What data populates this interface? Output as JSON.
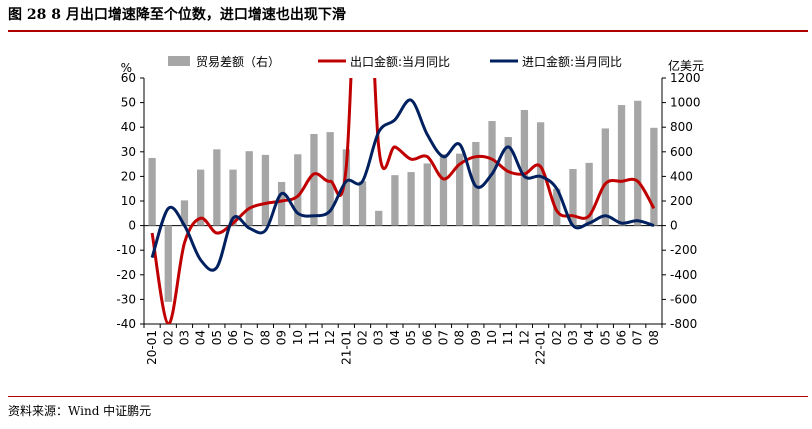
{
  "title": "图 28   8 月出口增速降至个位数，进口增速也出现下滑",
  "source": "资料来源：Wind    中证鹏元",
  "chart_data": {
    "type": "bar+line",
    "categories": [
      "20-01",
      "02",
      "03",
      "04",
      "05",
      "06",
      "07",
      "08",
      "09",
      "10",
      "11",
      "12",
      "21-01",
      "02",
      "03",
      "04",
      "05",
      "06",
      "07",
      "08",
      "09",
      "10",
      "11",
      "12",
      "22-01",
      "02",
      "03",
      "04",
      "05",
      "06",
      "07",
      "08"
    ],
    "y_left": {
      "unit": "%",
      "ylim": [
        -40,
        60
      ],
      "ticks": [
        -40,
        -30,
        -20,
        -10,
        0,
        10,
        20,
        30,
        40,
        50,
        60
      ]
    },
    "y_right": {
      "unit": "亿美元",
      "ylim": [
        -800,
        1200
      ],
      "ticks": [
        -800,
        -600,
        -400,
        -200,
        0,
        200,
        400,
        600,
        800,
        1000,
        1200
      ]
    },
    "legend": [
      "贸易差额（右）",
      "出口金额:当月同比",
      "进口金额:当月同比"
    ],
    "series": [
      {
        "name": "贸易差额（右）",
        "type": "bar",
        "axis": "right",
        "color": "#a6a6a6",
        "values": [
          550,
          -620,
          205,
          455,
          620,
          455,
          605,
          575,
          355,
          580,
          745,
          760,
          620,
          360,
          120,
          410,
          435,
          505,
          580,
          585,
          680,
          850,
          720,
          940,
          840,
          300,
          460,
          510,
          790,
          980,
          1015,
          795
        ]
      },
      {
        "name": "出口金额:当月同比",
        "type": "line",
        "axis": "left",
        "color": "#c00000",
        "values": [
          -3,
          -40,
          -7,
          3,
          -3,
          1,
          7,
          9,
          10,
          12,
          21,
          18,
          24,
          154,
          32,
          32,
          27,
          28,
          19,
          25,
          28,
          27,
          22,
          21,
          24,
          6,
          4,
          4,
          17,
          18,
          18,
          7
        ]
      },
      {
        "name": "进口金额:当月同比",
        "type": "line",
        "axis": "left",
        "color": "#002060",
        "values": [
          -13,
          7,
          0,
          -14,
          -17,
          3,
          -1,
          -2,
          13,
          5,
          4,
          6,
          18,
          18,
          38,
          43,
          51,
          37,
          28,
          33,
          16,
          21,
          32,
          20,
          20,
          15,
          0,
          1,
          4,
          1,
          2,
          0
        ]
      }
    ]
  }
}
